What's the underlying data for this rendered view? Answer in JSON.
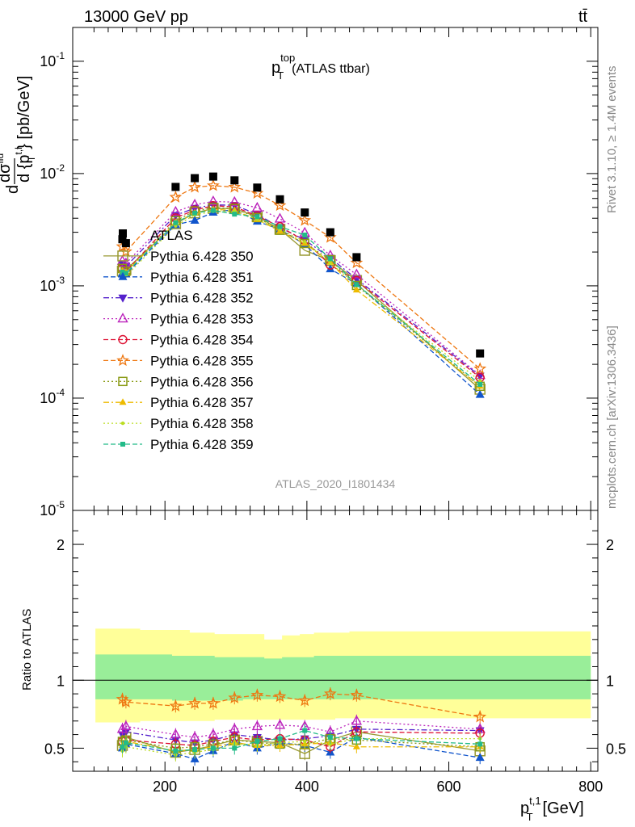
{
  "header": {
    "collision": "13000 GeV pp",
    "process": "tt̄",
    "plot_title_main": "p",
    "plot_title_sup": "top",
    "plot_title_sub": "T",
    "plot_title_suffix": "(ATLAS ttbar)",
    "analysis_id": "ATLAS_2020_I1801434",
    "rivet_label": "Rivet 3.1.10, ≥ 1.4M events",
    "source_label": "mcplots.cern.ch [arXiv:1306.3436]"
  },
  "axes": {
    "ylabel_top": "d dσ^fid / d {p_T^t,l} [pb/GeV]",
    "ylabel_top_parts": {
      "d": "d",
      "sigma": "dσ",
      "fid": "fid",
      "denom": "d {p",
      "sup": "t,l",
      "sub": "T",
      "close": "} [pb/GeV]"
    },
    "ylabel_ratio": "Ratio to ATLAS",
    "xlabel_main": "p",
    "xlabel_sup": "t,1",
    "xlabel_sub": "T",
    "xlabel_unit": "[GeV]"
  },
  "colors": {
    "ATLAS": "#000000",
    "350": "#999933",
    "351": "#1155cc",
    "352": "#5522cc",
    "353": "#bb22bb",
    "354": "#dd1133",
    "355": "#ee7711",
    "356": "#889911",
    "357": "#eebb00",
    "358": "#bbdd22",
    "359": "#22bb88",
    "band_inner": "#99ee99",
    "band_outer": "#ffff99"
  },
  "chart_data": {
    "type": "scatter",
    "x_scale": "linear",
    "xlim": [
      70,
      810
    ],
    "x_ticks": [
      200,
      400,
      600,
      800
    ],
    "main_panel": {
      "y_scale": "log",
      "ylim": [
        1e-05,
        0.2
      ],
      "y_tick_labels": [
        "10^-5",
        "10^-4",
        "10^-3",
        "10^-2",
        "10^-1"
      ]
    },
    "ratio_panel": {
      "ylim": [
        0.33,
        2.25
      ],
      "y_ticks": [
        0.5,
        1,
        2
      ],
      "band_x": [
        102,
        140,
        165,
        210,
        235,
        250,
        270,
        290,
        310,
        340,
        365,
        390,
        410,
        440,
        460,
        500,
        530,
        800
      ],
      "band_inner_lo": [
        0.86,
        0.86,
        0.86,
        0.85,
        0.85,
        0.85,
        0.85,
        0.85,
        0.86,
        0.86,
        0.86,
        0.86,
        0.86,
        0.86,
        0.86,
        0.86,
        0.86,
        0.87
      ],
      "band_inner_hi": [
        1.19,
        1.19,
        1.19,
        1.18,
        1.18,
        1.18,
        1.17,
        1.17,
        1.17,
        1.16,
        1.17,
        1.17,
        1.18,
        1.18,
        1.18,
        1.18,
        1.18,
        1.18
      ],
      "band_outer_lo": [
        0.69,
        0.69,
        0.7,
        0.7,
        0.7,
        0.7,
        0.71,
        0.71,
        0.71,
        0.71,
        0.71,
        0.71,
        0.71,
        0.72,
        0.72,
        0.72,
        0.72,
        0.73
      ],
      "band_outer_hi": [
        1.38,
        1.38,
        1.37,
        1.37,
        1.35,
        1.35,
        1.34,
        1.34,
        1.34,
        1.3,
        1.33,
        1.34,
        1.35,
        1.35,
        1.36,
        1.36,
        1.36,
        1.37
      ]
    },
    "x": [
      140,
      145,
      215,
      242,
      268,
      298,
      330,
      362,
      397,
      433,
      470,
      644
    ],
    "data": {
      "name": "ATLAS",
      "values": [
        0.0026,
        0.0024,
        0.0076,
        0.0091,
        0.0094,
        0.0087,
        0.0075,
        0.0059,
        0.0045,
        0.003,
        0.0018,
        0.00025
      ]
    },
    "series": [
      {
        "name": "Pythia 6.428 350",
        "marker": "open-square",
        "dash": "solid",
        "ratio": [
          0.52,
          0.58,
          0.47,
          0.49,
          0.52,
          0.56,
          0.55,
          0.54,
          0.46,
          0.56,
          0.62,
          0.48
        ]
      },
      {
        "name": "Pythia 6.428 351",
        "marker": "filled-triangle-up",
        "dash": "dashed",
        "ratio": [
          0.5,
          0.53,
          0.46,
          0.42,
          0.48,
          0.55,
          0.5,
          0.54,
          0.52,
          0.47,
          0.58,
          0.43
        ]
      },
      {
        "name": "Pythia 6.428 352",
        "marker": "filled-triangle-down",
        "dash": "dash-dot",
        "ratio": [
          0.6,
          0.62,
          0.56,
          0.54,
          0.56,
          0.6,
          0.58,
          0.56,
          0.57,
          0.59,
          0.64,
          0.63
        ]
      },
      {
        "name": "Pythia 6.428 353",
        "marker": "open-triangle-up",
        "dash": "dotted",
        "ratio": [
          0.64,
          0.66,
          0.6,
          0.58,
          0.6,
          0.64,
          0.66,
          0.67,
          0.66,
          0.62,
          0.7,
          0.64
        ]
      },
      {
        "name": "Pythia 6.428 354",
        "marker": "open-circle",
        "dash": "dashed",
        "ratio": [
          0.55,
          0.56,
          0.53,
          0.52,
          0.55,
          0.58,
          0.56,
          0.57,
          0.56,
          0.51,
          0.62,
          0.61
        ]
      },
      {
        "name": "Pythia 6.428 355",
        "marker": "open-star",
        "dash": "dashed",
        "ratio": [
          0.86,
          0.84,
          0.81,
          0.83,
          0.83,
          0.87,
          0.89,
          0.88,
          0.85,
          0.9,
          0.89,
          0.73
        ]
      },
      {
        "name": "Pythia 6.428 356",
        "marker": "open-square-small",
        "dash": "dotted",
        "ratio": [
          0.55,
          0.56,
          0.5,
          0.51,
          0.53,
          0.56,
          0.54,
          0.53,
          0.53,
          0.57,
          0.56,
          0.51
        ]
      },
      {
        "name": "Pythia 6.428 357",
        "marker": "tri",
        "dash": "dash-dot",
        "ratio": [
          0.52,
          0.55,
          0.48,
          0.49,
          0.51,
          0.54,
          0.52,
          0.52,
          0.53,
          0.54,
          0.51,
          0.51
        ]
      },
      {
        "name": "Pythia 6.428 358",
        "marker": "dot",
        "dash": "dotted",
        "ratio": [
          0.48,
          0.51,
          0.45,
          0.47,
          0.49,
          0.53,
          0.52,
          0.54,
          0.55,
          0.53,
          0.57,
          0.57
        ]
      },
      {
        "name": "Pythia 6.428 359",
        "marker": "filled-square-small",
        "dash": "dashed",
        "ratio": [
          0.51,
          0.54,
          0.48,
          0.49,
          0.5,
          0.5,
          0.55,
          0.57,
          0.63,
          0.58,
          0.57,
          0.53
        ]
      }
    ]
  }
}
